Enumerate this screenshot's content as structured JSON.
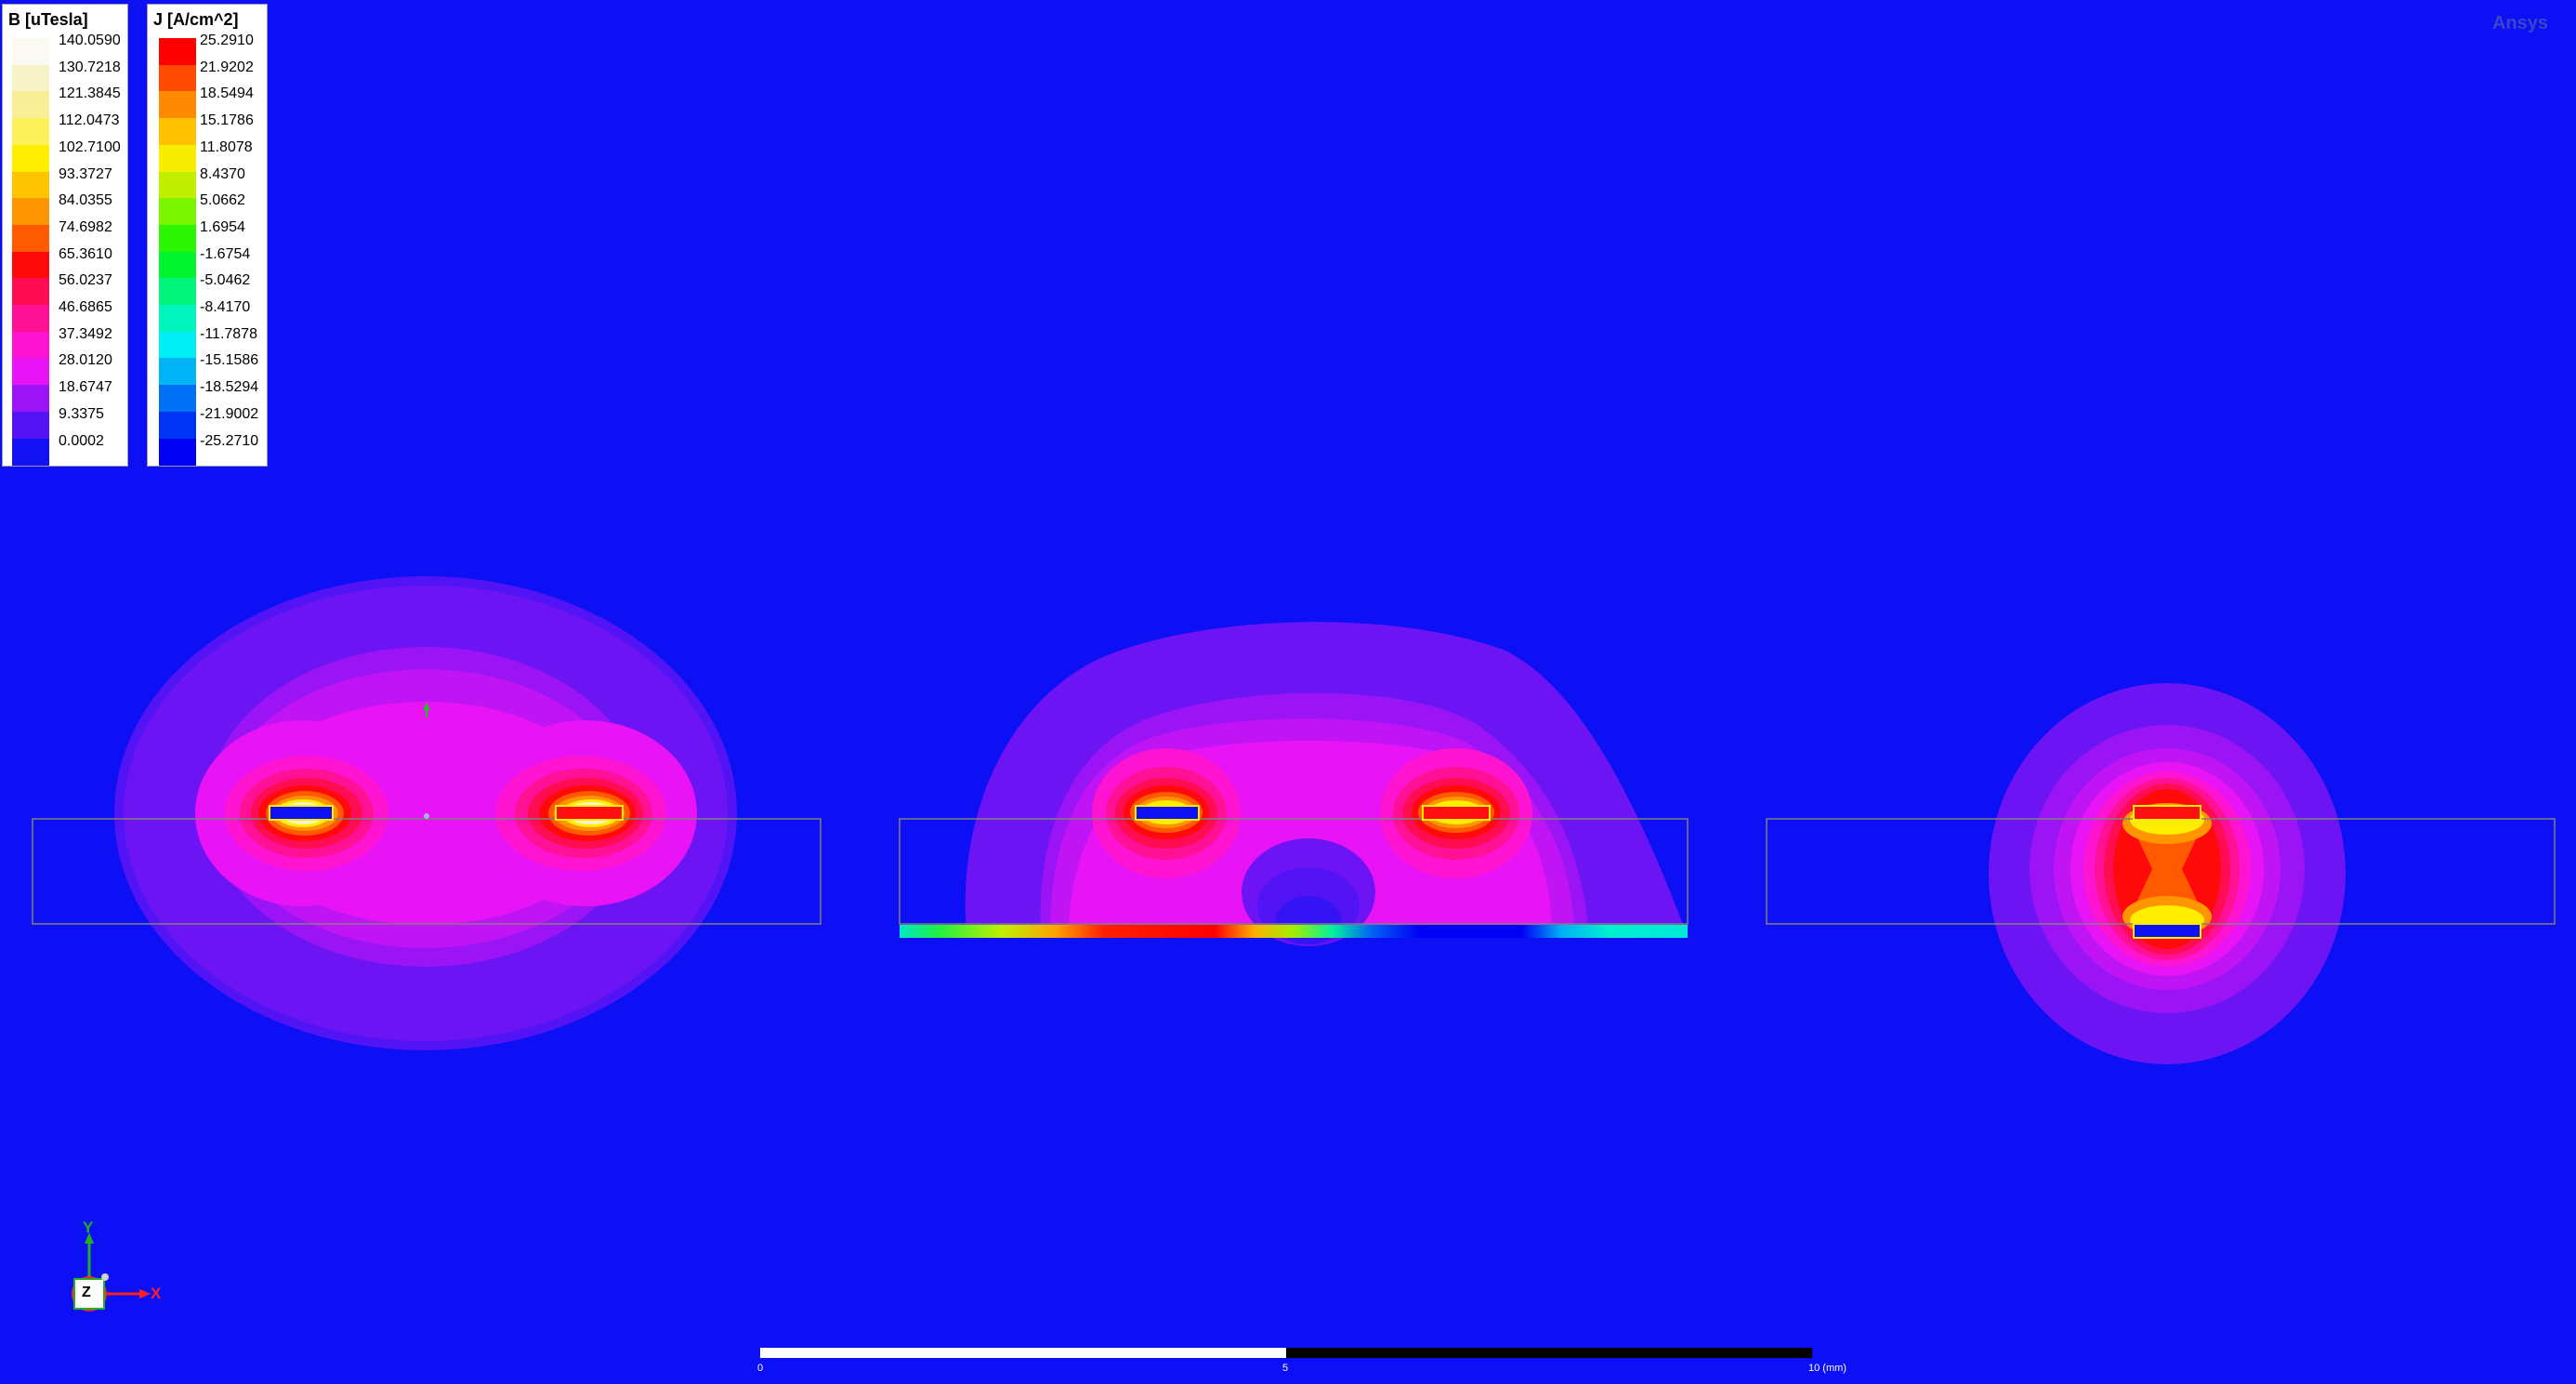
{
  "brand": "Ansys",
  "legends": {
    "b": {
      "title": "B [uTesla]",
      "entries": [
        {
          "value": "140.0590",
          "color": "#fafaf2"
        },
        {
          "value": "130.7218",
          "color": "#f7f2c8"
        },
        {
          "value": "121.3845",
          "color": "#f7ef96"
        },
        {
          "value": "112.0473",
          "color": "#fbf25a"
        },
        {
          "value": "102.7100",
          "color": "#ffee00"
        },
        {
          "value": "93.3727",
          "color": "#ffc400"
        },
        {
          "value": "84.0355",
          "color": "#ff9500"
        },
        {
          "value": "74.6982",
          "color": "#ff5a00"
        },
        {
          "value": "65.3610",
          "color": "#ff0a0a"
        },
        {
          "value": "56.0237",
          "color": "#ff0c52"
        },
        {
          "value": "46.6865",
          "color": "#ff1094"
        },
        {
          "value": "37.3492",
          "color": "#ff14d2"
        },
        {
          "value": "28.0120",
          "color": "#e914f5"
        },
        {
          "value": "18.6747",
          "color": "#9a14f5"
        },
        {
          "value": "9.3375",
          "color": "#5214f5"
        },
        {
          "value": "0.0002",
          "color": "#1212f5"
        }
      ]
    },
    "j": {
      "title": "J [A/cm^2]",
      "entries": [
        {
          "value": "25.2910",
          "color": "#ff0000"
        },
        {
          "value": "21.9202",
          "color": "#ff4a00"
        },
        {
          "value": "18.5494",
          "color": "#ff8a00"
        },
        {
          "value": "15.1786",
          "color": "#ffc000"
        },
        {
          "value": "11.8078",
          "color": "#f6ee00"
        },
        {
          "value": "8.4370",
          "color": "#c0f000"
        },
        {
          "value": "5.0662",
          "color": "#7af500"
        },
        {
          "value": "1.6954",
          "color": "#2cf500"
        },
        {
          "value": "-1.6754",
          "color": "#00f530"
        },
        {
          "value": "-5.0462",
          "color": "#00f57a"
        },
        {
          "value": "-8.4170",
          "color": "#00f5bc"
        },
        {
          "value": "-11.7878",
          "color": "#00eef5"
        },
        {
          "value": "-15.1586",
          "color": "#00b4f5"
        },
        {
          "value": "-18.5294",
          "color": "#0070f5"
        },
        {
          "value": "-21.9002",
          "color": "#0034f5"
        },
        {
          "value": "-25.2710",
          "color": "#0000f5"
        }
      ]
    }
  },
  "axis_triad": {
    "y": "Y",
    "z": "Z",
    "x": "X"
  },
  "scale_bar": {
    "label_start": "0",
    "label_mid": "5",
    "label_end": "10 (mm)"
  },
  "colors": {
    "background": "#0d10f5",
    "conductor_positive": "#ff1010",
    "conductor_negative": "#1010f5"
  }
}
